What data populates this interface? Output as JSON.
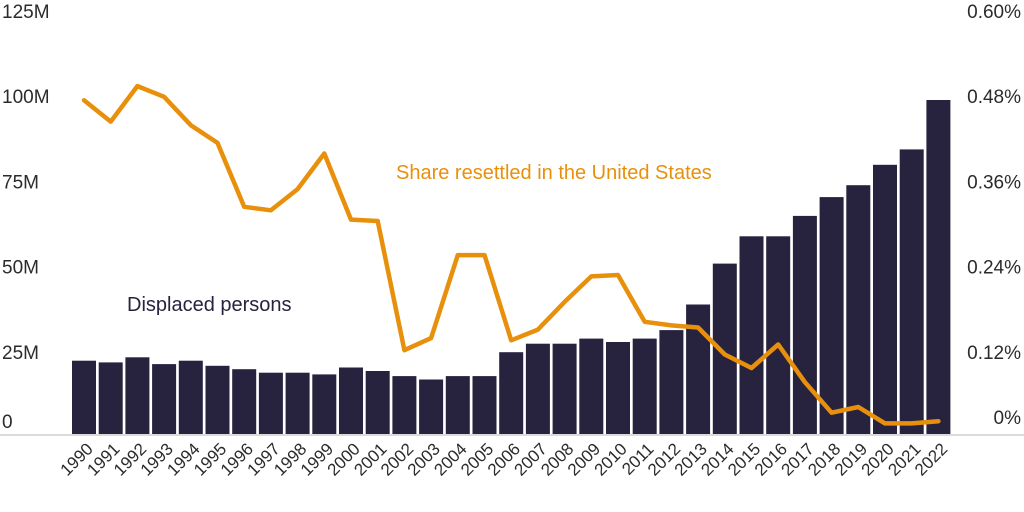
{
  "chart_data": {
    "type": "bar+line",
    "colors": {
      "bar": "#27233f",
      "line": "#e8900c",
      "axis": "#cfcfcf",
      "text": "#2b2b2b"
    },
    "categories": [
      "1990",
      "1991",
      "1992",
      "1993",
      "1994",
      "1995",
      "1996",
      "1997",
      "1998",
      "1999",
      "2000",
      "2001",
      "2002",
      "2003",
      "2004",
      "2005",
      "2006",
      "2007",
      "2008",
      "2009",
      "2010",
      "2011",
      "2012",
      "2013",
      "2014",
      "2015",
      "2016",
      "2017",
      "2018",
      "2019",
      "2020",
      "2021",
      "2022"
    ],
    "series": [
      {
        "name": "Displaced persons",
        "kind": "bar",
        "axis": "left",
        "values": [
          21.5,
          21,
          22.5,
          20.5,
          21.5,
          20,
          19,
          18,
          18,
          17.5,
          19.5,
          18.5,
          17,
          16,
          17,
          17,
          24,
          26.5,
          26.5,
          28,
          27,
          28,
          30.5,
          38,
          50,
          58,
          58,
          64,
          69.5,
          73,
          79,
          83.5,
          98
        ]
      },
      {
        "name": "Share resettled in the United States",
        "kind": "line",
        "axis": "right",
        "values": [
          0.47,
          0.44,
          0.49,
          0.475,
          0.435,
          0.41,
          0.32,
          0.315,
          0.345,
          0.395,
          0.302,
          0.3,
          0.118,
          0.135,
          0.252,
          0.252,
          0.132,
          0.147,
          0.186,
          0.222,
          0.224,
          0.158,
          0.153,
          0.15,
          0.112,
          0.093,
          0.126,
          0.073,
          0.03,
          0.038,
          0.015,
          0.015,
          0.018
        ]
      }
    ],
    "y_left": {
      "ticks": [
        "0",
        "25M",
        "50M",
        "75M",
        "100M",
        "125M"
      ],
      "range": [
        0,
        125
      ],
      "unit": "M"
    },
    "y_right": {
      "ticks": [
        "0%",
        "0.12%",
        "0.24%",
        "0.36%",
        "0.48%",
        "0.60%"
      ],
      "range": [
        0,
        0.6
      ],
      "unit": "%"
    },
    "annotations": {
      "bars": "Displaced persons",
      "line": "Share resettled in the United States"
    },
    "grid": false,
    "legend": "none"
  }
}
